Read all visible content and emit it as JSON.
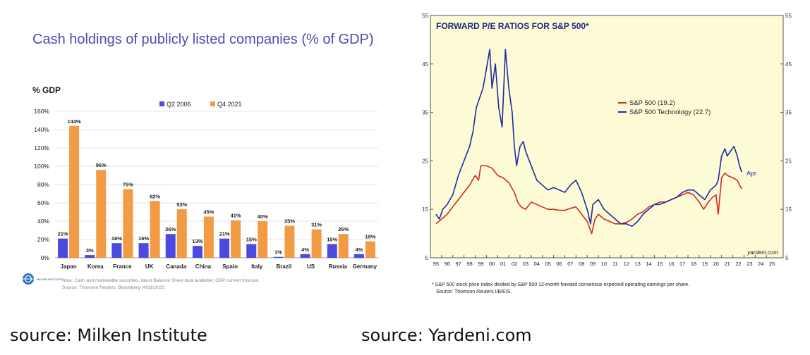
{
  "captions": {
    "left": "source: Milken Institute",
    "right": "source: Yardeni.com"
  },
  "chart_data": [
    {
      "type": "bar",
      "title": "Cash holdings of publicly listed companies (% of GDP)",
      "ylabel": "% GDP",
      "ylim": [
        0,
        160
      ],
      "yticks": [
        "0%",
        "20%",
        "40%",
        "60%",
        "80%",
        "100%",
        "120%",
        "140%",
        "160%"
      ],
      "categories": [
        "Japan",
        "Korea",
        "France",
        "UK",
        "Canada",
        "China",
        "Spain",
        "Italy",
        "Brazil",
        "US",
        "Russia",
        "Germany"
      ],
      "series": [
        {
          "name": "Q2 2006",
          "color": "#4a4ae0",
          "values": [
            21,
            3,
            16,
            16,
            26,
            13,
            21,
            15,
            1,
            4,
            15,
            4
          ],
          "labels": [
            "21%",
            "3%",
            "16%",
            "16%",
            "26%",
            "13%",
            "21%",
            "15%",
            "1%",
            "4%",
            "15%",
            "4%"
          ]
        },
        {
          "name": "Q4 2021",
          "color": "#f39a44",
          "values": [
            144,
            96,
            75,
            62,
            53,
            45,
            41,
            40,
            35,
            31,
            26,
            18
          ],
          "labels": [
            "144%",
            "96%",
            "75%",
            "62%",
            "53%",
            "45%",
            "41%",
            "40%",
            "35%",
            "31%",
            "26%",
            "18%"
          ]
        }
      ],
      "grid": true,
      "legend": "top-center",
      "logo_text": "MILKEN INSTITUTE",
      "note_lines": [
        "Note: Cash and marketable securities, latest Balance Sheet data available; GDP current forecast.",
        "Source: Thomson Reuters, Bloomberg (4/28/2022)"
      ]
    },
    {
      "type": "line",
      "title": "FORWARD P/E RATIOS FOR S&P 500*",
      "ylim": [
        5,
        55
      ],
      "yticks": [
        "5",
        "15",
        "25",
        "35",
        "45",
        "55"
      ],
      "xlim": [
        1994.5,
        2026
      ],
      "xticks": [
        "95",
        "96",
        "97",
        "98",
        "99",
        "00",
        "01",
        "02",
        "03",
        "04",
        "05",
        "06",
        "07",
        "08",
        "09",
        "10",
        "11",
        "12",
        "13",
        "14",
        "15",
        "16",
        "17",
        "18",
        "19",
        "20",
        "21",
        "22",
        "23",
        "24",
        "25"
      ],
      "plot_bg": "#fdfbd6",
      "series": [
        {
          "name": "S&P 500 (19.2)",
          "color": "#d42a22",
          "x": [
            1995.0,
            1995.5,
            1996.0,
            1996.5,
            1997.0,
            1997.5,
            1998.0,
            1998.5,
            1998.8,
            1999.0,
            1999.5,
            2000.0,
            2000.5,
            2001.0,
            2001.5,
            2002.0,
            2002.3,
            2002.6,
            2003.0,
            2003.5,
            2004.0,
            2004.5,
            2005.0,
            2005.5,
            2006.0,
            2006.5,
            2007.0,
            2007.5,
            2008.0,
            2008.5,
            2008.9,
            2009.2,
            2009.5,
            2010.0,
            2010.5,
            2011.0,
            2011.5,
            2012.0,
            2012.5,
            2013.0,
            2013.5,
            2014.0,
            2014.5,
            2015.0,
            2015.5,
            2016.0,
            2016.5,
            2017.0,
            2017.5,
            2018.0,
            2018.5,
            2018.9,
            2019.3,
            2019.7,
            2020.0,
            2020.2,
            2020.5,
            2020.8,
            2021.0,
            2021.5,
            2021.9,
            2022.1,
            2022.3
          ],
          "y": [
            12,
            13,
            14,
            15.5,
            17,
            18.5,
            20,
            22,
            21,
            24,
            24,
            23.5,
            22,
            21.5,
            20.5,
            18.5,
            16.5,
            15.5,
            15,
            16.5,
            16,
            15.5,
            15,
            15,
            14.8,
            14.8,
            15.2,
            15.5,
            14,
            12.5,
            10,
            13,
            14,
            13,
            12.5,
            12,
            12,
            12.3,
            13,
            14,
            14.5,
            15.5,
            16,
            16.5,
            16.5,
            17,
            17.5,
            18,
            18.5,
            18,
            16.5,
            15,
            16.5,
            17.5,
            18,
            14,
            21.5,
            22.5,
            22,
            21.5,
            21,
            20,
            19.2
          ]
        },
        {
          "name": "S&P 500 Technology (22.7)",
          "color": "#1f2aa0",
          "x": [
            1995.0,
            1995.3,
            1995.6,
            1996.0,
            1996.5,
            1997.0,
            1997.5,
            1998.0,
            1998.3,
            1998.6,
            1998.9,
            1999.2,
            1999.5,
            1999.8,
            2000.0,
            2000.3,
            2000.6,
            2000.9,
            2001.2,
            2001.5,
            2001.8,
            2002.0,
            2002.2,
            2002.5,
            2002.8,
            2003.0,
            2003.5,
            2004.0,
            2004.5,
            2005.0,
            2005.5,
            2006.0,
            2006.5,
            2007.0,
            2007.5,
            2008.0,
            2008.5,
            2008.8,
            2009.0,
            2009.5,
            2010.0,
            2010.5,
            2011.0,
            2011.5,
            2012.0,
            2012.5,
            2013.0,
            2013.5,
            2014.0,
            2014.5,
            2015.0,
            2015.5,
            2016.0,
            2016.5,
            2017.0,
            2017.5,
            2018.0,
            2018.5,
            2019.0,
            2019.5,
            2020.0,
            2020.2,
            2020.5,
            2020.8,
            2021.0,
            2021.3,
            2021.6,
            2021.9,
            2022.1,
            2022.3
          ],
          "y": [
            14,
            13,
            15,
            16,
            18,
            22,
            25,
            28,
            31,
            36,
            38,
            40,
            44,
            48,
            40,
            45,
            36,
            32,
            48,
            40,
            35,
            28,
            24,
            28,
            29,
            27,
            24,
            21,
            20,
            19,
            19.5,
            19,
            18.5,
            20,
            21,
            18.5,
            15,
            12,
            16,
            17,
            15,
            14,
            13,
            12,
            12,
            11.5,
            12.5,
            14,
            15,
            16,
            16,
            16.5,
            17,
            17.5,
            18.5,
            19,
            19,
            18,
            17,
            19,
            20,
            21,
            26,
            27.5,
            26,
            27,
            28,
            26,
            24,
            22.7
          ]
        }
      ],
      "end_label": "Apr",
      "legend": "upper-middle",
      "watermark": "yardeni.com",
      "footnote_lines": [
        "*  S&P 500 stock price index divided by S&P 500 12-month forward consensus expected operating earnings per share.",
        "Source: Thomson Reuters I/B/E/S."
      ]
    }
  ]
}
